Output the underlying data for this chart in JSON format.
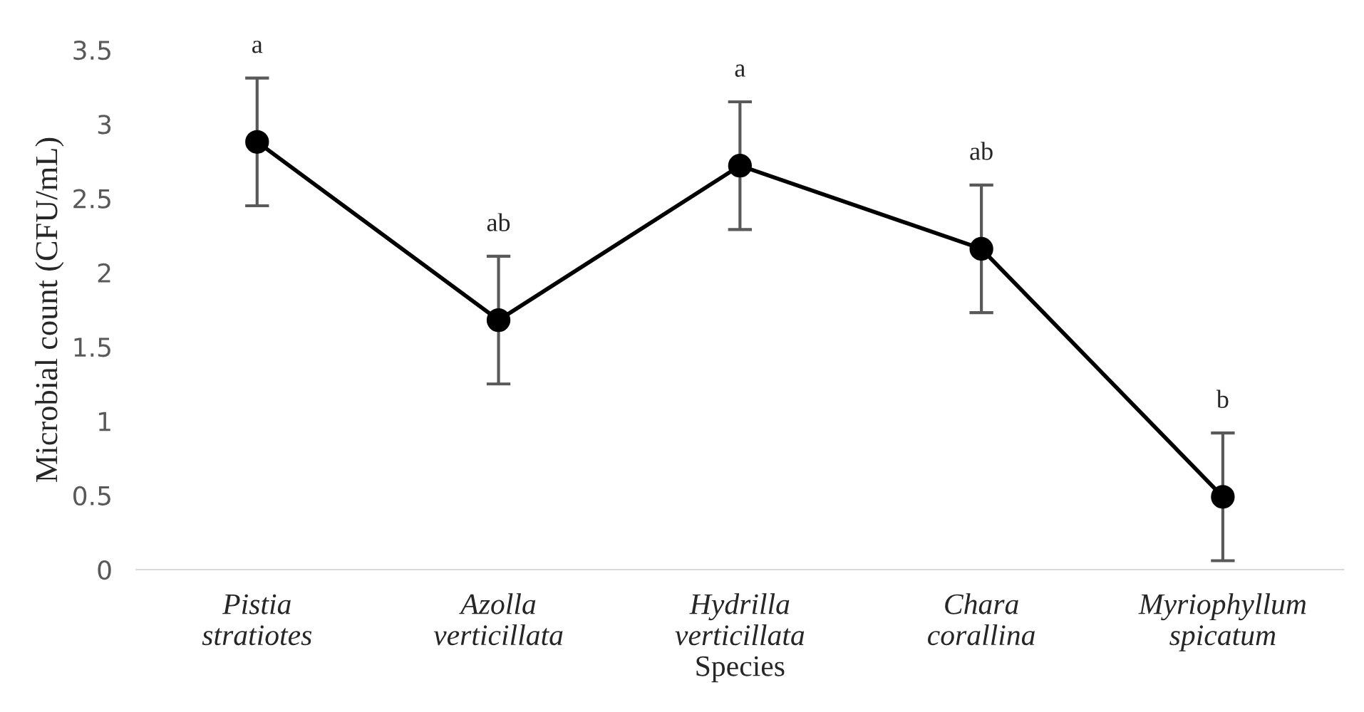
{
  "chart_data": {
    "type": "line",
    "xlabel": "Species",
    "ylabel": "Microbial count (CFU/mL)",
    "categories": [
      "Pistia\nstratiotes",
      "Azolla\nverticillata",
      "Hydrilla\nverticillata",
      "Chara\ncorallina",
      "Myriophyllum\nspicatum"
    ],
    "series": [
      {
        "color": "#000000",
        "values": [
          2.88,
          1.68,
          2.72,
          2.16,
          0.49
        ],
        "errors": [
          0.43,
          0.43,
          0.43,
          0.43,
          0.43
        ]
      }
    ],
    "ylim": [
      0,
      3.5
    ],
    "yticks": [
      0,
      0.5,
      1,
      1.5,
      2,
      2.5,
      3,
      3.5
    ],
    "grid": false,
    "legend": false,
    "marker": "circle",
    "line_style": "solid",
    "annotations": [
      "a",
      "ab",
      "a",
      "ab",
      "b"
    ]
  }
}
